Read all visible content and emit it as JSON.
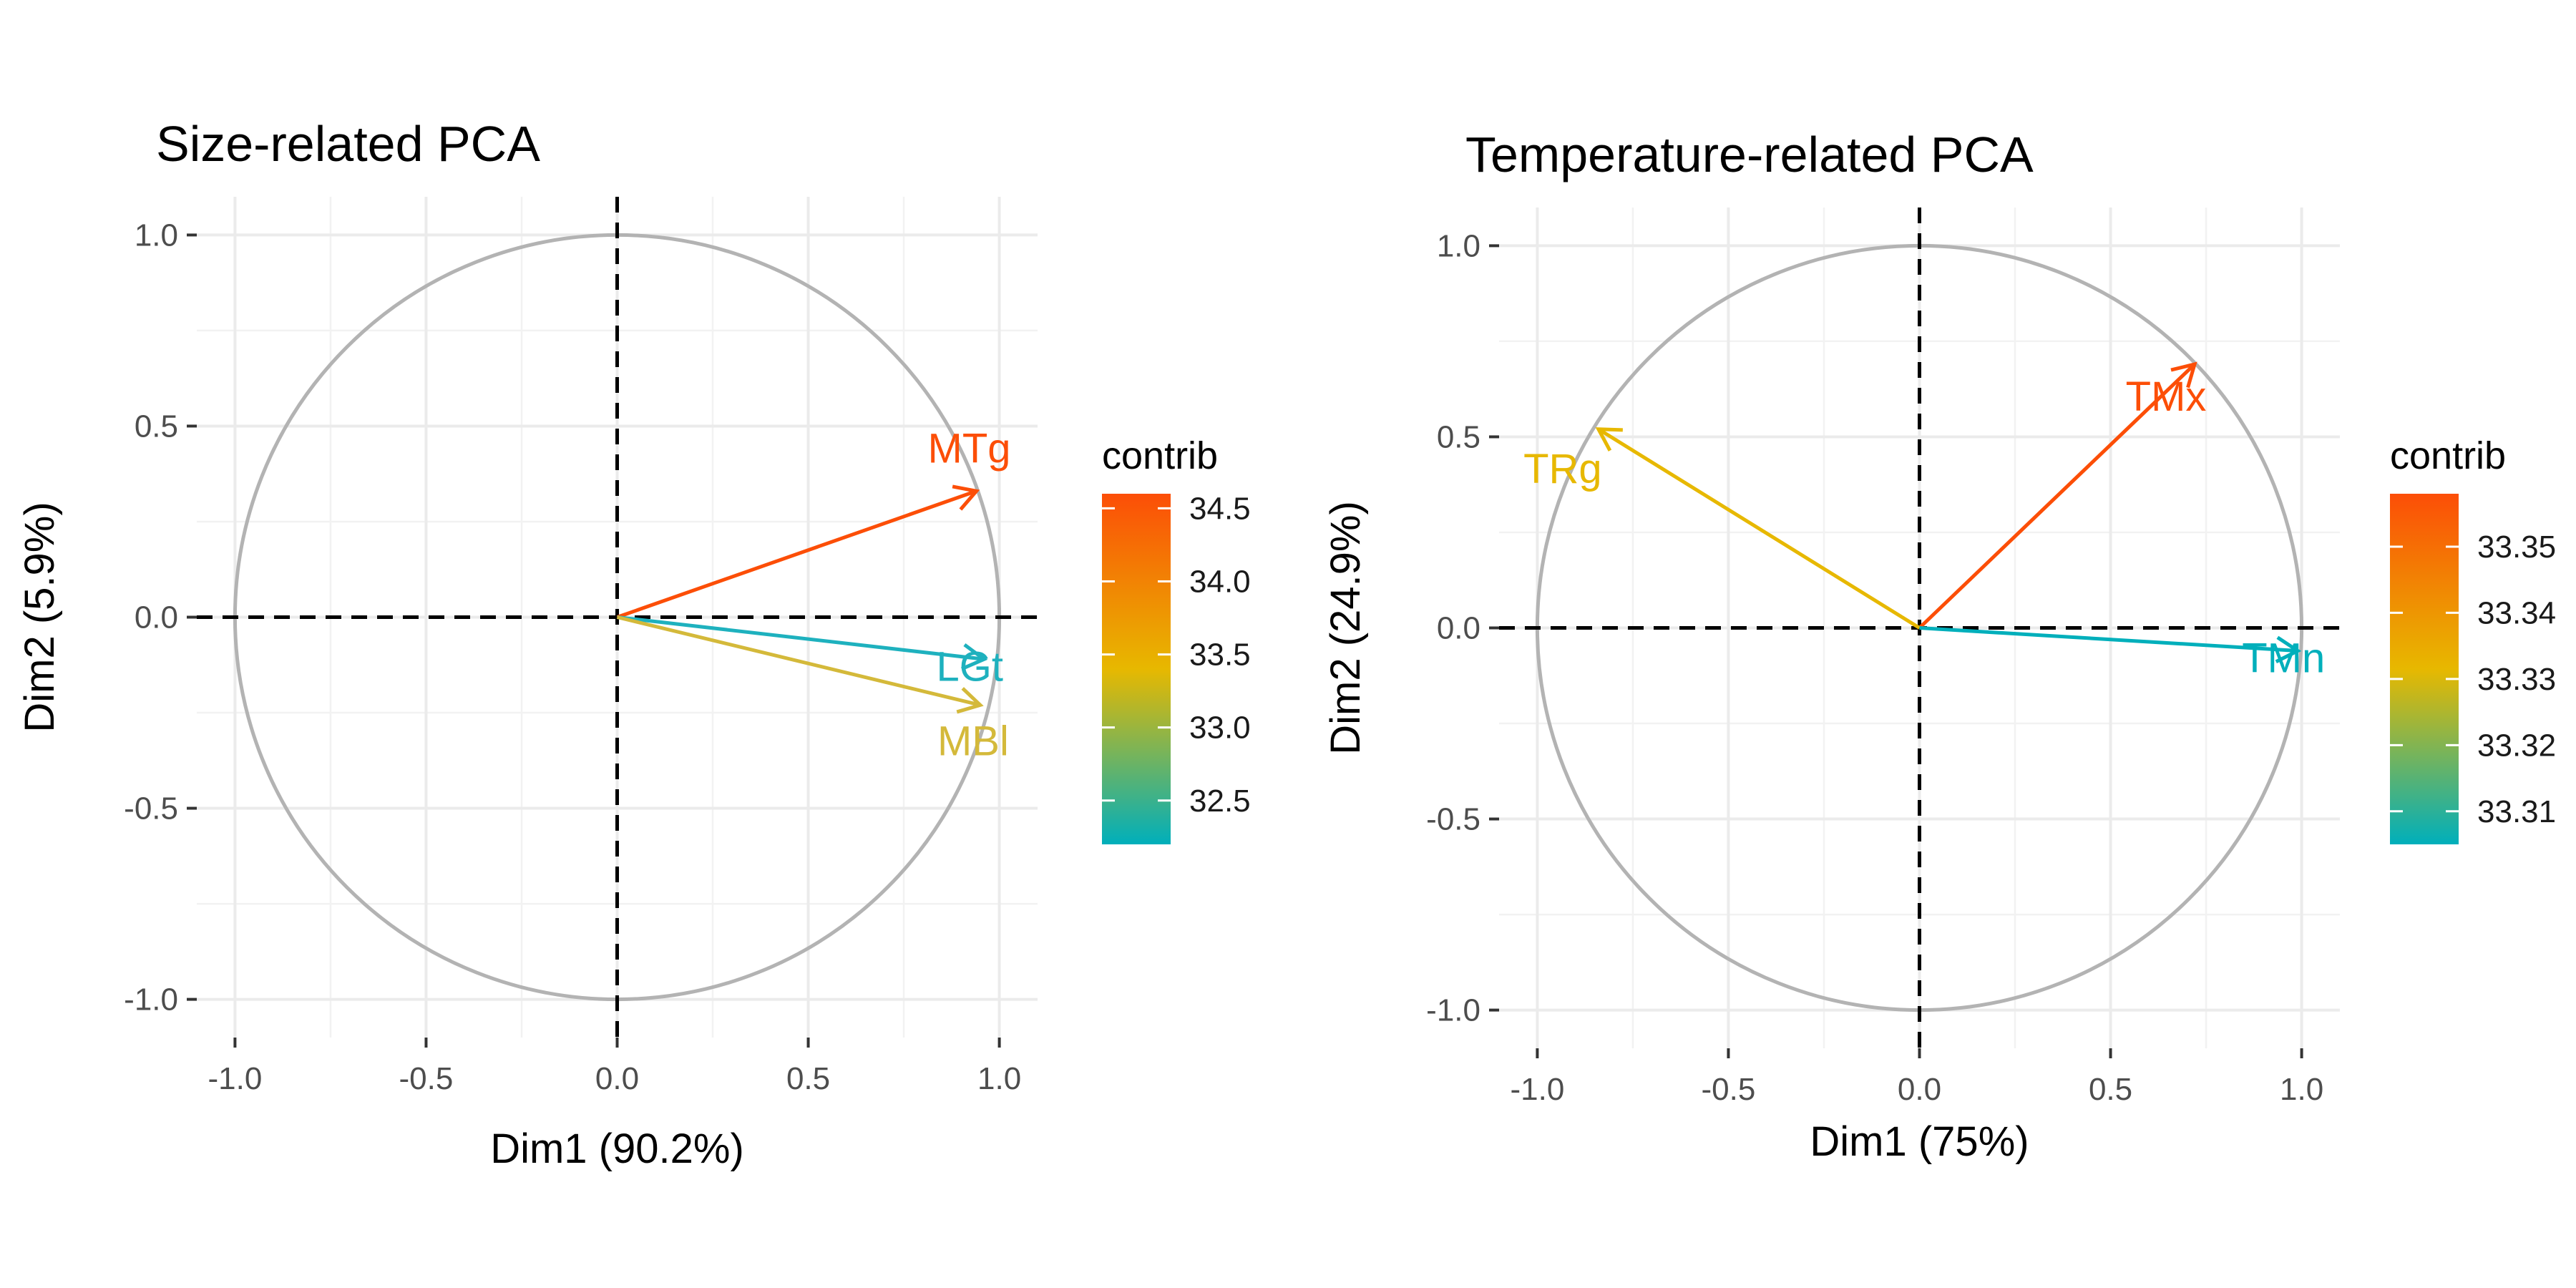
{
  "chart_data": [
    {
      "type": "scatter",
      "title": "Size-related PCA",
      "xlabel": "Dim1 (90.2%)",
      "ylabel": "Dim2 (5.9%)",
      "xlim": [
        -1.1,
        1.1
      ],
      "ylim": [
        -1.1,
        1.1
      ],
      "x_ticks": [
        -1.0,
        -0.5,
        0.0,
        0.5,
        1.0
      ],
      "y_ticks": [
        -1.0,
        -0.5,
        0.0,
        0.5,
        1.0
      ],
      "x_tick_labels": [
        "-1.0",
        "-0.5",
        "0.0",
        "0.5",
        "1.0"
      ],
      "y_tick_labels": [
        "-1.0",
        "-0.5",
        "0.0",
        "0.5",
        "1.0"
      ],
      "grid": true,
      "unit_circle": true,
      "legend": {
        "title": "contrib",
        "position": "right",
        "range": [
          32.2,
          34.6
        ],
        "ticks": [
          "32.5",
          "33.0",
          "33.5",
          "34.0",
          "34.5"
        ],
        "tick_values": [
          32.5,
          33.0,
          33.5,
          34.0,
          34.5
        ],
        "colors": [
          "#00AFBB",
          "#E7B800",
          "#FC4E07"
        ]
      },
      "variables": [
        {
          "name": "MTg",
          "x": 0.94,
          "y": 0.33,
          "contrib": 34.55,
          "color": "#FC4E07"
        },
        {
          "name": "LGt",
          "x": 0.96,
          "y": -0.11,
          "contrib": 32.25,
          "color": "#1EB1BE"
        },
        {
          "name": "MBl",
          "x": 0.95,
          "y": -0.23,
          "contrib": 33.2,
          "color": "#D4B93A"
        }
      ]
    },
    {
      "type": "scatter",
      "title": "Temperature-related PCA",
      "xlabel": "Dim1 (75%)",
      "ylabel": "Dim2 (24.9%)",
      "xlim": [
        -1.1,
        1.1
      ],
      "ylim": [
        -1.1,
        1.1
      ],
      "x_ticks": [
        -1.0,
        -0.5,
        0.0,
        0.5,
        1.0
      ],
      "y_ticks": [
        -1.0,
        -0.5,
        0.0,
        0.5,
        1.0
      ],
      "x_tick_labels": [
        "-1.0",
        "-0.5",
        "0.0",
        "0.5",
        "1.0"
      ],
      "y_tick_labels": [
        "-1.0",
        "-0.5",
        "0.0",
        "0.5",
        "1.0"
      ],
      "grid": true,
      "unit_circle": true,
      "legend": {
        "title": "contrib",
        "position": "right",
        "range": [
          33.305,
          33.358
        ],
        "ticks": [
          "33.31",
          "33.32",
          "33.33",
          "33.34",
          "33.35"
        ],
        "tick_values": [
          33.31,
          33.32,
          33.33,
          33.34,
          33.35
        ],
        "colors": [
          "#00AFBB",
          "#E7B800",
          "#FC4E07"
        ]
      },
      "variables": [
        {
          "name": "TMx",
          "x": 0.72,
          "y": 0.69,
          "contrib": 33.358,
          "color": "#FC4E07"
        },
        {
          "name": "TRg",
          "x": -0.84,
          "y": 0.52,
          "contrib": 33.336,
          "color": "#E7B800"
        },
        {
          "name": "TMn",
          "x": 0.99,
          "y": -0.06,
          "contrib": 33.305,
          "color": "#00AFBB"
        }
      ]
    }
  ]
}
